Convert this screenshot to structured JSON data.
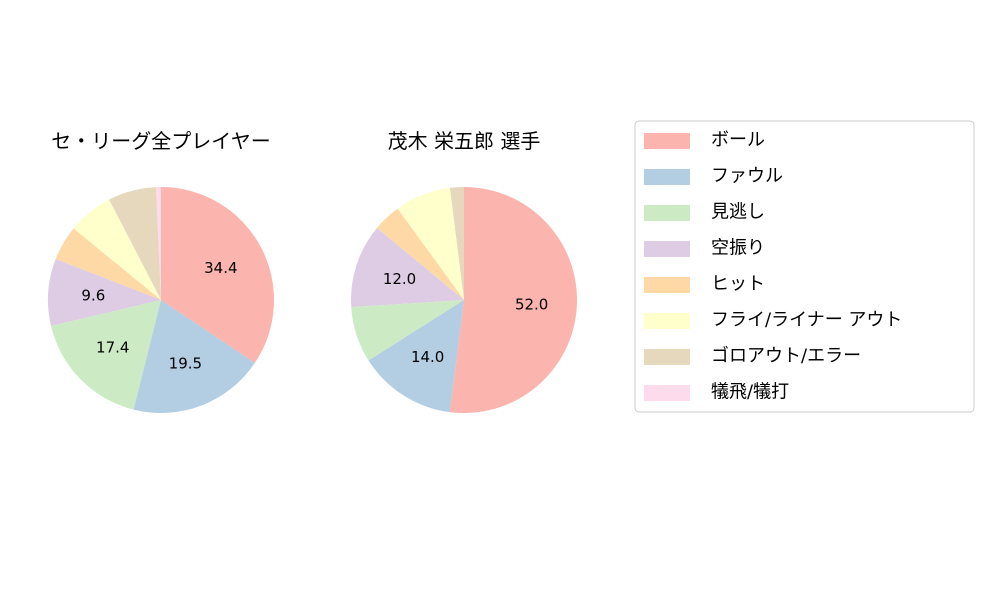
{
  "chart_data": {
    "type": "pie",
    "categories": [
      "ボール",
      "ファウル",
      "見逃し",
      "空振り",
      "ヒット",
      "フライ/ライナー アウト",
      "ゴロアウト/エラー",
      "犠飛/犠打"
    ],
    "colors": [
      "#fbb4ae",
      "#b3cde3",
      "#ccebc5",
      "#decbe4",
      "#fed9a6",
      "#ffffcc",
      "#e5d8bd",
      "#fddaec"
    ],
    "legend_position": "right",
    "pies": [
      {
        "title": "セ・リーグ全プレイヤー",
        "values": [
          34.4,
          19.5,
          17.4,
          9.6,
          5.0,
          6.5,
          6.9,
          0.7
        ],
        "labels": [
          "34.4",
          "19.5",
          "17.4",
          "9.6",
          "",
          "",
          "",
          ""
        ]
      },
      {
        "title": "茂木 栄五郎  選手",
        "values": [
          52.0,
          14.0,
          8.0,
          12.0,
          4.0,
          8.0,
          2.0,
          0.0
        ],
        "labels": [
          "52.0",
          "14.0",
          "",
          "12.0",
          "",
          "",
          "",
          ""
        ]
      }
    ]
  }
}
